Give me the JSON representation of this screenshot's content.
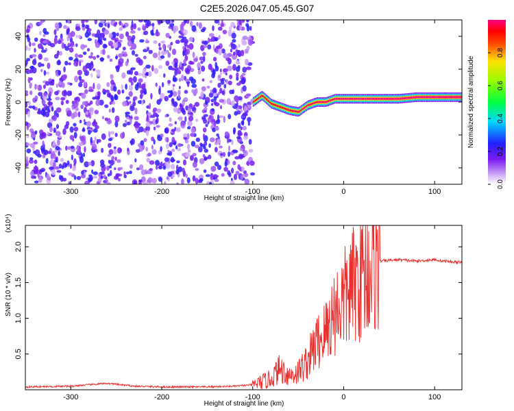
{
  "figure": {
    "title": "C2E5.2026.047.05.45.G07"
  },
  "chart_data": [
    {
      "type": "heatmap",
      "xlabel": "Height of straight line (km)",
      "ylabel": "Frequency (Hz)",
      "xlim": [
        -350,
        130
      ],
      "ylim": [
        -50,
        50
      ],
      "x_ticks": [
        -300,
        -200,
        -100,
        0,
        100
      ],
      "y_ticks": [
        -40,
        -20,
        0,
        20,
        40
      ],
      "grid": false,
      "colorbar": {
        "label": "Normalized spectral amplitude",
        "range": [
          0.0,
          1.0
        ],
        "ticks": [
          0.0,
          0.2,
          0.4,
          0.6,
          0.8
        ],
        "tick_labels": [
          "0.0",
          "0.2",
          "0.4",
          "0.6",
          "0.8"
        ],
        "colormap": "rainbow (white-violet-blue-cyan-green-yellow-red-magenta)"
      },
      "regions": [
        {
          "x_range": [
            -350,
            -100
          ],
          "description_type": "diffuse noise",
          "amplitude_range": [
            0.05,
            0.25
          ]
        },
        {
          "x_range": [
            -100,
            130
          ],
          "description_type": "carrier line",
          "amplitude_range": [
            0.4,
            1.0
          ]
        }
      ],
      "ridge": {
        "x": [
          -100,
          -90,
          -80,
          -70,
          -60,
          -50,
          -40,
          -30,
          -20,
          -10,
          0,
          20,
          40,
          60,
          80,
          100,
          130
        ],
        "freq_hz": [
          0,
          4,
          -1,
          -3,
          -5,
          -6,
          -2,
          0,
          0,
          2,
          2,
          2,
          2,
          2,
          3,
          3,
          3
        ]
      }
    },
    {
      "type": "line",
      "xlabel": "Height of straight line (km)",
      "ylabel": "SNR (10 * v/v)",
      "y_multiplier": "(x10⁴)",
      "xlim": [
        -350,
        130
      ],
      "ylim": [
        0,
        2.3
      ],
      "x_ticks": [
        -300,
        -200,
        -100,
        0,
        100
      ],
      "y_ticks": [
        0.5,
        1.0,
        1.5,
        2.0
      ],
      "y_tick_labels": [
        "0.5",
        "1.0",
        "1.5",
        "2.0"
      ],
      "grid": false,
      "series_color": "#e8312f",
      "x": [
        -350,
        -300,
        -260,
        -230,
        -200,
        -150,
        -120,
        -100,
        -80,
        -70,
        -60,
        -50,
        -40,
        -30,
        -20,
        -10,
        0,
        10,
        20,
        30,
        40,
        60,
        80,
        100,
        110,
        130
      ],
      "y": [
        0.04,
        0.05,
        0.09,
        0.05,
        0.04,
        0.04,
        0.05,
        0.07,
        0.15,
        0.3,
        0.2,
        0.25,
        0.4,
        0.65,
        0.8,
        1.1,
        1.25,
        1.45,
        1.6,
        1.72,
        1.8,
        1.82,
        1.8,
        1.82,
        1.8,
        1.78
      ]
    }
  ]
}
